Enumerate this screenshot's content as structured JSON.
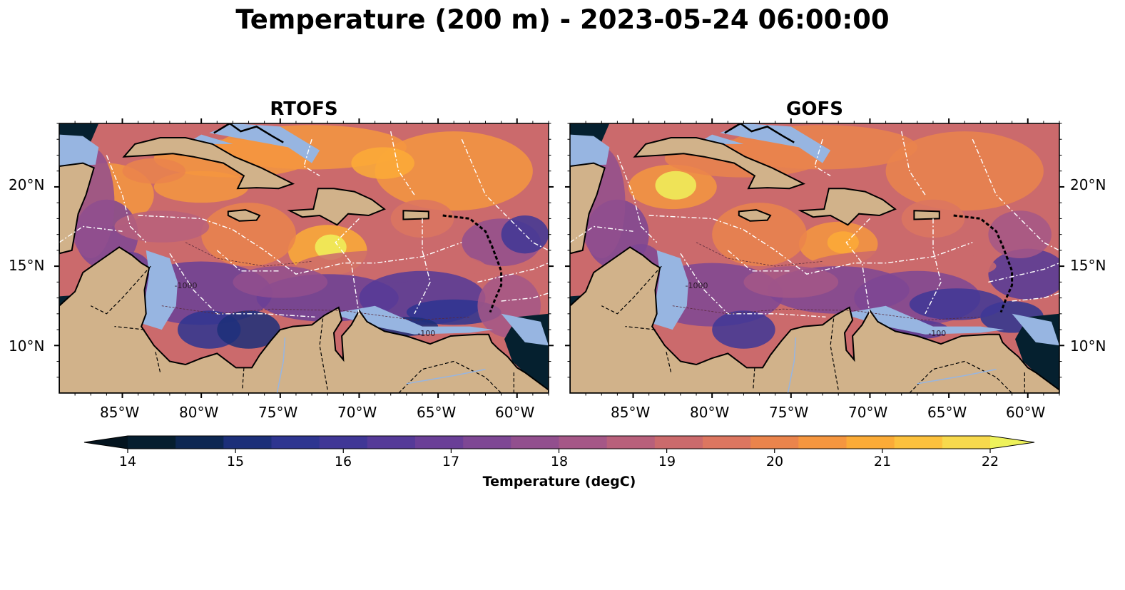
{
  "figure": {
    "title": "Temperature (200 m) - 2023-05-24 06:00:00"
  },
  "panels": [
    {
      "title": "RTOFS",
      "map_id": "rtofs"
    },
    {
      "title": "GOFS",
      "map_id": "gofs"
    }
  ],
  "map_extent": {
    "lon_min": -89,
    "lon_max": -58,
    "lat_min": 7,
    "lat_max": 24
  },
  "longitude_ticks": [
    "85°W",
    "80°W",
    "75°W",
    "70°W",
    "65°W",
    "60°W"
  ],
  "latitude_ticks": [
    "20°N",
    "15°N",
    "10°N"
  ],
  "contour_labels": [
    "-1000",
    "-100"
  ],
  "colorbar": {
    "label": "Temperature (degC)",
    "ticks": [
      "14",
      "15",
      "16",
      "17",
      "18",
      "19",
      "20",
      "21",
      "22"
    ],
    "vmin": 14,
    "vmax": 22,
    "step": 0.5,
    "extend": "both",
    "colors": [
      "#061e2f",
      "#0d2752",
      "#1c2f79",
      "#2e3590",
      "#403796",
      "#553a98",
      "#6a3f97",
      "#7e4794",
      "#924f8e",
      "#a55787",
      "#b8607b",
      "#cb6a6c",
      "#dc7660",
      "#ea844c",
      "#f5963f",
      "#fbab37",
      "#fcc13d",
      "#f7d94d"
    ],
    "under_color": "#04141f",
    "over_color": "#eef25a"
  },
  "map_colors": {
    "land": "#d1b28a",
    "shallow_water": "#97b5e1",
    "deep_pacific": "#05202f",
    "coastline": "#000000",
    "eez_boundary": "#ffffff"
  }
}
